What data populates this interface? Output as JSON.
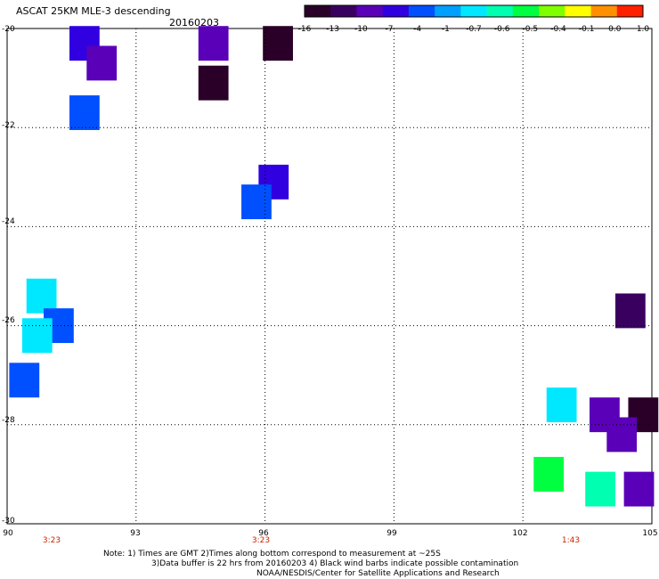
{
  "title": "ASCAT 25KM MLE-3 descending",
  "date": "20160203",
  "colorbar": {
    "labels": [
      "-16",
      "-13",
      "-10",
      "-7",
      "-4",
      "-1",
      "-0.7",
      "-0.6",
      "-0.5",
      "-0.4",
      "-0.1",
      "0.0",
      "1.0"
    ],
    "colors": [
      "#2a0028",
      "#3a0060",
      "#5a00b8",
      "#3000e0",
      "#0050ff",
      "#00a0ff",
      "#00e8ff",
      "#00ffb0",
      "#00ff40",
      "#80ff00",
      "#ffff00",
      "#ff9000",
      "#ff2000"
    ]
  },
  "axes": {
    "x_ticks": [
      "90",
      "93",
      "96",
      "99",
      "102",
      "105"
    ],
    "y_ticks": [
      "-20",
      "-22",
      "-24",
      "-26",
      "-28",
      "-30"
    ],
    "xlim": [
      90,
      105
    ],
    "ylim": [
      -30,
      -20
    ],
    "grid": "dotted"
  },
  "time_labels": [
    "3:23",
    "3:23",
    "1:43"
  ],
  "notes": {
    "line1": "Note: 1) Times are GMT 2)Times along bottom correspond to measurement at ~25S",
    "line2": "3)Data buffer is 22 hrs from 20160203 4) Black wind barbs indicate possible contamination",
    "line3": "NOAA/NESDIS/Center for Satellite Applications and Research"
  },
  "chart_data": {
    "type": "heatmap",
    "title": "ASCAT 25KM MLE-3 descending",
    "date": "20160203",
    "xlim": [
      90,
      105
    ],
    "ylim": [
      -30,
      -20
    ],
    "scale_labels": [
      "-16",
      "-13",
      "-10",
      "-7",
      "-4",
      "-1",
      "-0.7",
      "-0.6",
      "-0.5",
      "-0.4",
      "-0.1",
      "0.0",
      "1.0"
    ],
    "cells": [
      {
        "lon": 91.8,
        "lat": -20.3,
        "value": -7
      },
      {
        "lon": 92.2,
        "lat": -20.7,
        "value": -10
      },
      {
        "lon": 94.8,
        "lat": -20.3,
        "value": -10
      },
      {
        "lon": 96.3,
        "lat": -20.3,
        "value": -16
      },
      {
        "lon": 94.8,
        "lat": -21.1,
        "value": -16
      },
      {
        "lon": 91.8,
        "lat": -21.7,
        "value": -4
      },
      {
        "lon": 96.2,
        "lat": -23.1,
        "value": -7
      },
      {
        "lon": 95.8,
        "lat": -23.5,
        "value": -4
      },
      {
        "lon": 90.8,
        "lat": -25.4,
        "value": -1
      },
      {
        "lon": 91.2,
        "lat": -26.0,
        "value": -4
      },
      {
        "lon": 90.7,
        "lat": -26.2,
        "value": -1
      },
      {
        "lon": 90.4,
        "lat": -27.1,
        "value": -4
      },
      {
        "lon": 104.5,
        "lat": -25.7,
        "value": -13
      },
      {
        "lon": 102.9,
        "lat": -27.6,
        "value": -1
      },
      {
        "lon": 103.9,
        "lat": -27.8,
        "value": -10
      },
      {
        "lon": 104.8,
        "lat": -27.8,
        "value": -16
      },
      {
        "lon": 104.3,
        "lat": -28.2,
        "value": -10
      },
      {
        "lon": 102.6,
        "lat": -29.0,
        "value": -0.5
      },
      {
        "lon": 103.8,
        "lat": -29.3,
        "value": -0.6
      },
      {
        "lon": 104.7,
        "lat": -29.3,
        "value": -10
      }
    ]
  }
}
